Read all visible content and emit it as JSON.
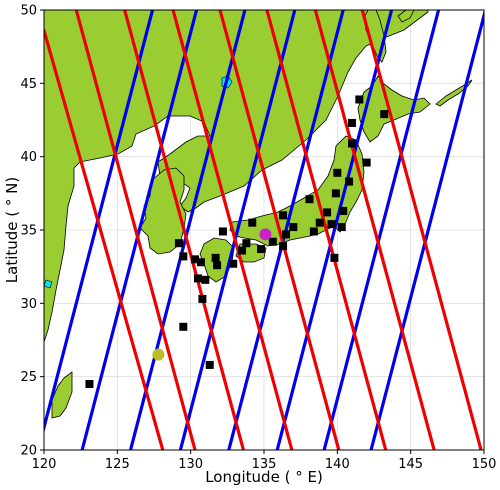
{
  "colors": {
    "land": "#9acd32",
    "lake": "#00e5ee",
    "ascending_track": "#0000ee",
    "descending_track": "#ee0000",
    "station_marker": "#000000",
    "purple_marker": "#cc22cc",
    "yellow_marker": "#bbbb22",
    "coastline": "#000000",
    "grid": "#dddddd"
  },
  "map": {
    "xlabel": "Longitude ($^\\circ$E)",
    "ylabel": "Latitude ($^\\circ$N)",
    "xlabel_display": "Longitude ( ° E)",
    "ylabel_display": "Latitude ( ° N)",
    "lon_range": [
      120,
      150
    ],
    "lat_range": [
      20,
      50
    ],
    "xticks": [
      "120",
      "125",
      "130",
      "135",
      "140",
      "145",
      "150"
    ],
    "yticks": [
      "20",
      "25",
      "30",
      "35",
      "40",
      "45",
      "50"
    ],
    "grid": true
  },
  "chart_data": {
    "type": "scatter",
    "xlabel": "Longitude ( ° E)",
    "ylabel": "Latitude ( ° N)",
    "xlim": [
      120,
      150
    ],
    "ylim": [
      20,
      50
    ],
    "grid": true,
    "tracks": {
      "ascending_blue": [
        [
          [
            119.6,
            20.0
          ],
          [
            127.4,
            50.0
          ]
        ],
        [
          [
            122.6,
            20.0
          ],
          [
            130.4,
            50.0
          ]
        ],
        [
          [
            125.9,
            20.0
          ],
          [
            133.7,
            50.0
          ]
        ],
        [
          [
            129.3,
            20.0
          ],
          [
            137.1,
            50.0
          ]
        ],
        [
          [
            132.6,
            20.0
          ],
          [
            140.4,
            50.0
          ]
        ],
        [
          [
            135.9,
            20.0
          ],
          [
            143.7,
            50.0
          ]
        ],
        [
          [
            139.1,
            20.0
          ],
          [
            146.9,
            50.0
          ]
        ],
        [
          [
            142.3,
            20.0
          ],
          [
            150.1,
            50.0
          ]
        ]
      ],
      "descending_red": [
        [
          [
            120.0,
            48.6
          ],
          [
            128.1,
            20.0
          ]
        ],
        [
          [
            122.2,
            50.0
          ],
          [
            130.3,
            20.0
          ]
        ],
        [
          [
            125.5,
            50.0
          ],
          [
            133.6,
            20.0
          ]
        ],
        [
          [
            128.8,
            50.0
          ],
          [
            136.9,
            20.0
          ]
        ],
        [
          [
            132.0,
            50.0
          ],
          [
            140.1,
            20.0
          ]
        ],
        [
          [
            135.2,
            50.0
          ],
          [
            143.3,
            20.0
          ]
        ],
        [
          [
            138.5,
            50.0
          ],
          [
            146.6,
            20.0
          ]
        ],
        [
          [
            141.7,
            50.0
          ],
          [
            149.8,
            20.0
          ]
        ]
      ]
    },
    "stations_square": [
      [
        123.1,
        24.5
      ],
      [
        129.2,
        34.1
      ],
      [
        129.5,
        33.2
      ],
      [
        129.5,
        28.4
      ],
      [
        130.3,
        33.0
      ],
      [
        130.5,
        31.7
      ],
      [
        130.7,
        32.8
      ],
      [
        130.8,
        30.3
      ],
      [
        131.0,
        31.6
      ],
      [
        131.3,
        25.8
      ],
      [
        131.7,
        33.1
      ],
      [
        131.8,
        32.6
      ],
      [
        132.2,
        34.9
      ],
      [
        132.9,
        32.7
      ],
      [
        133.5,
        33.6
      ],
      [
        133.8,
        34.1
      ],
      [
        134.2,
        35.5
      ],
      [
        134.8,
        33.7
      ],
      [
        135.6,
        34.2
      ],
      [
        136.3,
        33.9
      ],
      [
        136.5,
        34.7
      ],
      [
        136.3,
        36.0
      ],
      [
        137.0,
        35.2
      ],
      [
        138.1,
        37.1
      ],
      [
        138.4,
        34.9
      ],
      [
        138.8,
        35.5
      ],
      [
        139.3,
        36.2
      ],
      [
        139.6,
        35.4
      ],
      [
        139.8,
        33.1
      ],
      [
        139.9,
        37.5
      ],
      [
        140.0,
        38.9
      ],
      [
        140.3,
        35.2
      ],
      [
        140.4,
        36.3
      ],
      [
        140.8,
        38.3
      ],
      [
        141.0,
        40.9
      ],
      [
        141.0,
        42.3
      ],
      [
        141.5,
        43.9
      ],
      [
        142.0,
        39.6
      ],
      [
        143.2,
        42.9
      ]
    ],
    "marker_purple": [
      135.1,
      34.7
    ],
    "marker_yellow": [
      127.8,
      26.5
    ]
  }
}
